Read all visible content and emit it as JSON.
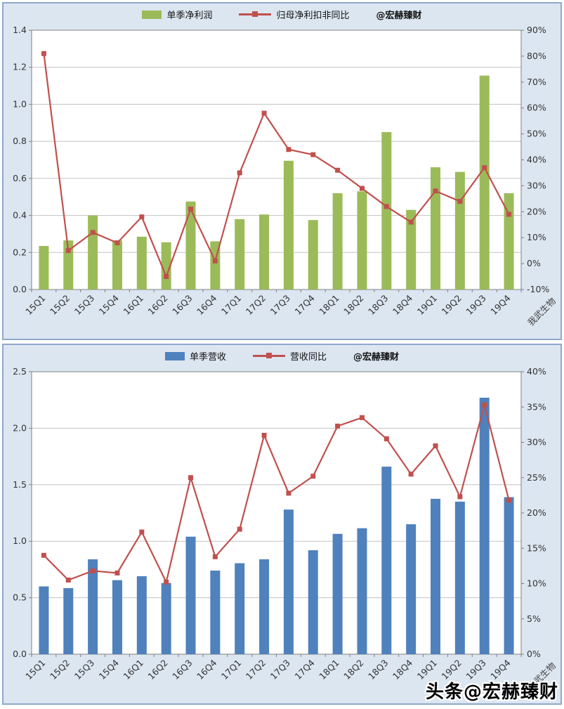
{
  "footer_watermark": "头条@宏赫臻财",
  "chart_data": [
    {
      "type": "bar",
      "subtype": "bar+line-combo",
      "title": "",
      "legend_position": "top",
      "grid": true,
      "legend": {
        "bar": "单季净利润",
        "line": "归母净利扣非同比",
        "watermark": "@宏赫臻财"
      },
      "axis_note": "我武生物",
      "colors": {
        "bar": "#9BBB59",
        "line": "#C0504D"
      },
      "categories": [
        "15Q1",
        "15Q2",
        "15Q3",
        "15Q4",
        "16Q1",
        "16Q2",
        "16Q3",
        "16Q4",
        "17Q1",
        "17Q2",
        "17Q3",
        "17Q4",
        "18Q1",
        "18Q2",
        "18Q3",
        "18Q4",
        "19Q1",
        "19Q2",
        "19Q3",
        "19Q4"
      ],
      "series": [
        {
          "name": "单季净利润",
          "type": "bar",
          "axis": "left",
          "values": [
            0.235,
            0.265,
            0.4,
            0.265,
            0.285,
            0.255,
            0.475,
            0.26,
            0.38,
            0.405,
            0.695,
            0.375,
            0.52,
            0.53,
            0.85,
            0.43,
            0.66,
            0.635,
            1.155,
            0.52
          ]
        },
        {
          "name": "归母净利扣非同比",
          "type": "line",
          "axis": "right",
          "values": [
            81,
            5,
            12,
            8,
            18,
            -5,
            21,
            1,
            35,
            58,
            44,
            42,
            36,
            29,
            22,
            16,
            28,
            24,
            37,
            19
          ]
        }
      ],
      "left_axis": {
        "min": 0,
        "max": 1.4,
        "step": 0.2,
        "decimals": 1
      },
      "right_axis": {
        "min": -10,
        "max": 90,
        "step": 10,
        "suffix": "%"
      }
    },
    {
      "type": "bar",
      "subtype": "bar+line-combo",
      "title": "",
      "legend_position": "top",
      "grid": true,
      "legend": {
        "bar": "单季营收",
        "line": "营收同比",
        "watermark": "@宏赫臻财"
      },
      "axis_note": "我武生物",
      "colors": {
        "bar": "#4F81BD",
        "line": "#C0504D"
      },
      "categories": [
        "15Q1",
        "15Q2",
        "15Q3",
        "15Q4",
        "16Q1",
        "16Q2",
        "16Q3",
        "16Q4",
        "17Q1",
        "17Q2",
        "17Q3",
        "17Q4",
        "18Q1",
        "18Q2",
        "18Q3",
        "18Q4",
        "19Q1",
        "19Q2",
        "19Q3",
        "19Q4"
      ],
      "series": [
        {
          "name": "单季营收",
          "type": "bar",
          "axis": "left",
          "values": [
            0.6,
            0.585,
            0.84,
            0.655,
            0.69,
            0.63,
            1.04,
            0.74,
            0.805,
            0.84,
            1.28,
            0.92,
            1.065,
            1.115,
            1.66,
            1.15,
            1.375,
            1.35,
            2.27,
            1.39
          ]
        },
        {
          "name": "营收同比",
          "type": "line",
          "axis": "right",
          "values": [
            14,
            10.5,
            11.8,
            11.5,
            17.3,
            10.2,
            25,
            13.8,
            17.7,
            31,
            22.8,
            25.2,
            32.3,
            33.5,
            30.5,
            25.5,
            29.5,
            22.3,
            35.3,
            21.8
          ]
        }
      ],
      "left_axis": {
        "min": 0,
        "max": 2.5,
        "step": 0.5,
        "decimals": 1
      },
      "right_axis": {
        "min": 0,
        "max": 40,
        "step": 5,
        "suffix": "%"
      }
    }
  ]
}
